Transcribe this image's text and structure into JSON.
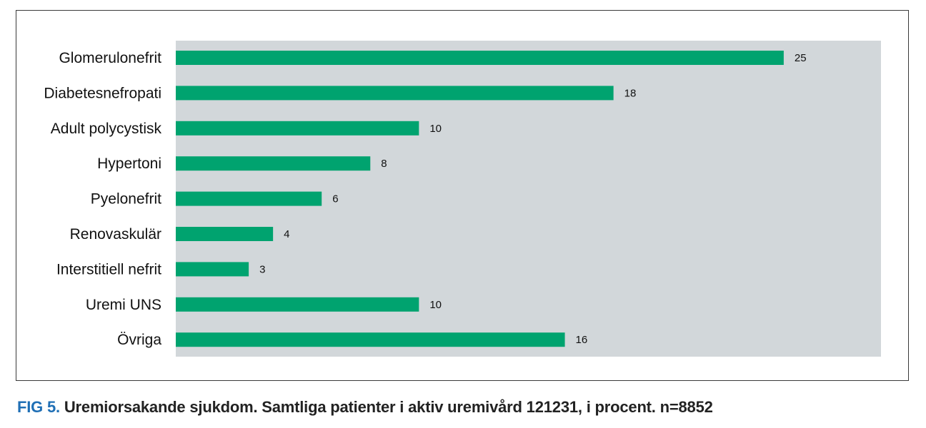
{
  "caption": {
    "fig_label": "FIG 5.",
    "text": "Uremiorsakande sjukdom. Samtliga patienter i aktiv uremivård 121231, i procent. n=8852"
  },
  "colors": {
    "bar": "#00a36f",
    "plot_background": "#d2d7da"
  },
  "chart_data": {
    "type": "bar",
    "orientation": "horizontal",
    "categories": [
      "Glomerulonefrit",
      "Diabetesnefropati",
      "Adult polycystisk",
      "Hypertoni",
      "Pyelonefrit",
      "Renovaskulär",
      "Interstitiell nefrit",
      "Uremi UNS",
      "Övriga"
    ],
    "values": [
      25,
      18,
      10,
      8,
      6,
      4,
      3,
      10,
      16
    ],
    "data_labels": [
      "25",
      "18",
      "10",
      "8",
      "6",
      "4",
      "3",
      "10",
      "16"
    ],
    "xlim": [
      0,
      29
    ],
    "grid": false,
    "legend": "none"
  }
}
